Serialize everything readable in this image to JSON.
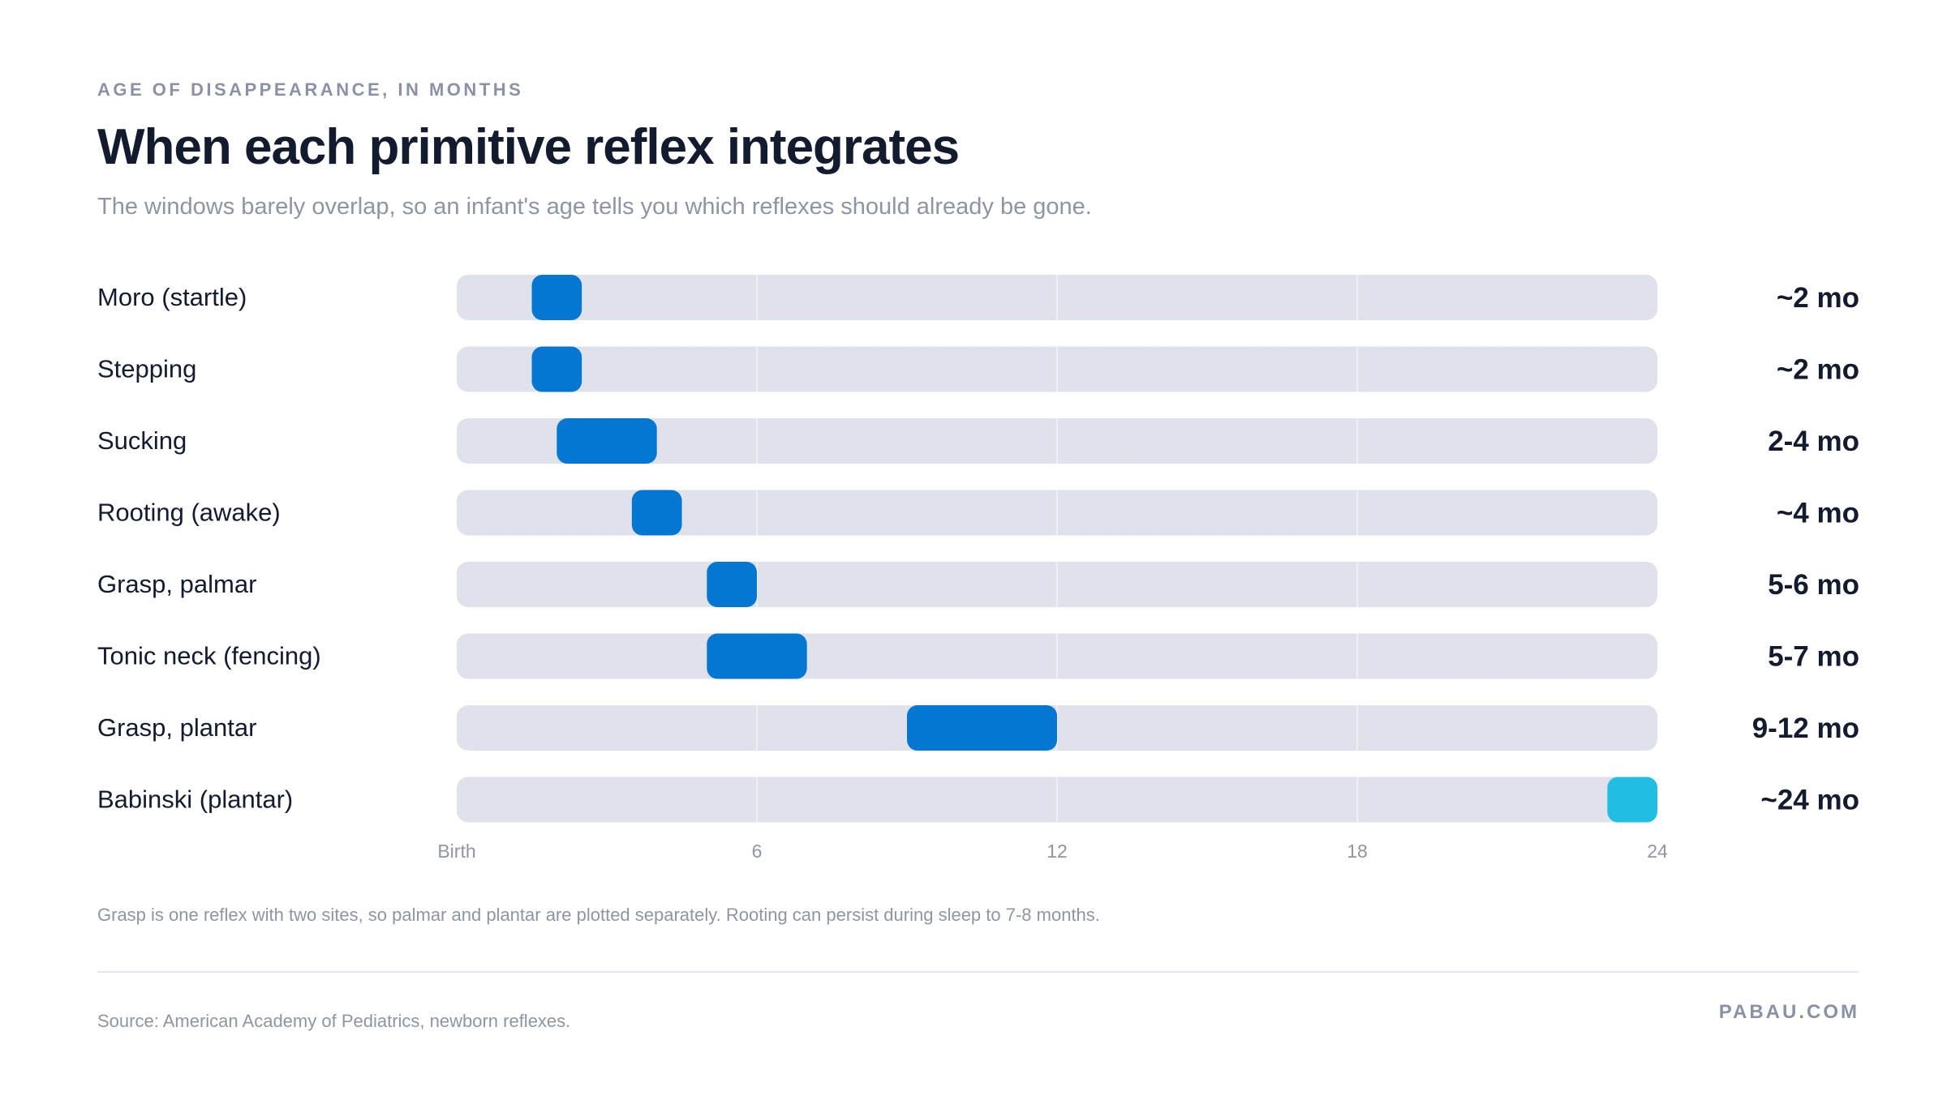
{
  "eyebrow": "AGE OF DISAPPEARANCE, IN MONTHS",
  "title": "When each primitive reflex integrates",
  "subtitle": "The windows barely overlap, so an infant's age tells you which reflexes should already be gone.",
  "footnote": "Grasp is one reflex with two sites, so palmar and plantar are plotted separately. Rooting can persist during sleep to 7-8 months.",
  "source": "Source: American Academy of Pediatrics, newborn reflexes.",
  "brand": "PABAU.COM",
  "colors": {
    "track": "#dfe2eb",
    "bar": "#0576d1",
    "bar_highlight": "#22bde3",
    "text": "#131b2e",
    "muted": "#8e95a3"
  },
  "chart_data": {
    "type": "bar",
    "orientation": "horizontal-range",
    "xlim": [
      0,
      24
    ],
    "x_ticks": [
      {
        "value": 0,
        "label": "Birth"
      },
      {
        "value": 6,
        "label": "6"
      },
      {
        "value": 12,
        "label": "12"
      },
      {
        "value": 18,
        "label": "18"
      },
      {
        "value": 24,
        "label": "24"
      }
    ],
    "grid": true,
    "rows": [
      {
        "label": "Moro (startle)",
        "start": 1.5,
        "end": 2.5,
        "value_label": "~2 mo",
        "highlight": false
      },
      {
        "label": "Stepping",
        "start": 1.5,
        "end": 2.5,
        "value_label": "~2 mo",
        "highlight": false
      },
      {
        "label": "Sucking",
        "start": 2,
        "end": 4,
        "value_label": "2-4 mo",
        "highlight": false
      },
      {
        "label": "Rooting (awake)",
        "start": 3.5,
        "end": 4.5,
        "value_label": "~4 mo",
        "highlight": false
      },
      {
        "label": "Grasp, palmar",
        "start": 5,
        "end": 6,
        "value_label": "5-6 mo",
        "highlight": false
      },
      {
        "label": "Tonic neck (fencing)",
        "start": 5,
        "end": 7,
        "value_label": "5-7 mo",
        "highlight": false
      },
      {
        "label": "Grasp, plantar",
        "start": 9,
        "end": 12,
        "value_label": "9-12 mo",
        "highlight": false
      },
      {
        "label": "Babinski (plantar)",
        "start": 23,
        "end": 24,
        "value_label": "~24 mo",
        "highlight": true
      }
    ]
  }
}
